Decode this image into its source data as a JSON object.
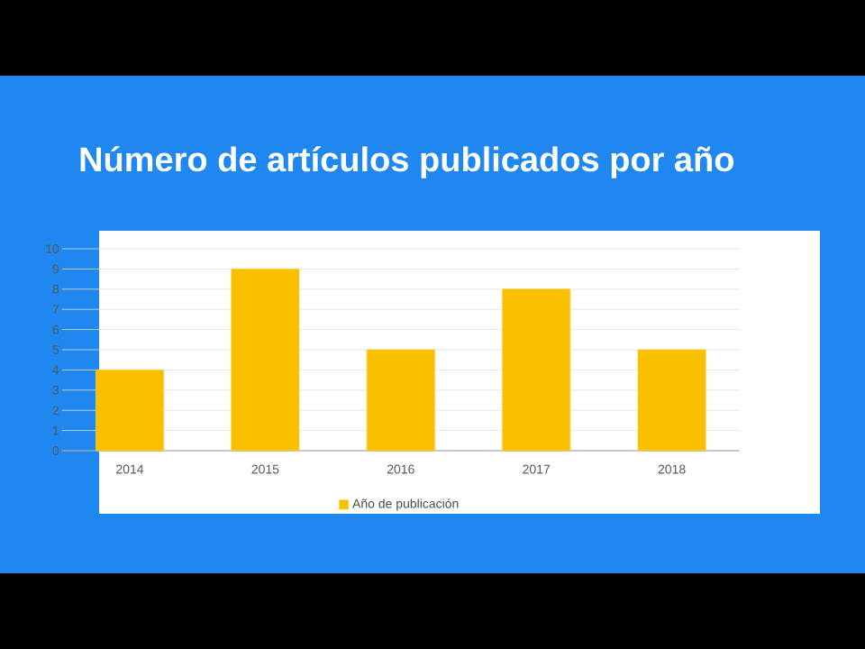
{
  "chart_data": {
    "type": "bar",
    "title": "Número de artículos publicados por año",
    "categories": [
      "2014",
      "2015",
      "2016",
      "2017",
      "2018"
    ],
    "series": [
      {
        "name": "Año de publicación",
        "color": "#f9c000",
        "values": [
          4,
          9,
          5,
          8,
          5
        ]
      }
    ],
    "ylim": [
      0,
      10
    ],
    "yticks": [
      0,
      1,
      2,
      3,
      4,
      5,
      6,
      7,
      8,
      9,
      10
    ],
    "grid": "y",
    "legend": "bottom"
  }
}
